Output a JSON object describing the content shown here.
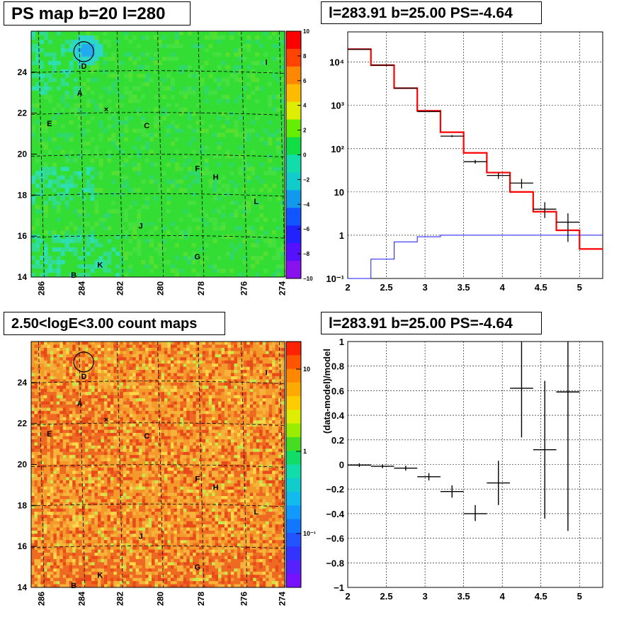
{
  "titles": {
    "ps_map": "PS map b=20 l=280",
    "spectrum": "l=283.91 b=25.00 PS=-4.64",
    "count_map": "2.50<logE<3.00 count maps",
    "residual": "l=283.91 b=25.00 PS=-4.64"
  },
  "colors": {
    "map_green": "#33dd33",
    "count_orange": "#f39a2a",
    "model_red": "#ff0000",
    "background_blue": "#1a1aff",
    "marker": "#000000"
  },
  "chart_data": [
    {
      "type": "heatmap",
      "name": "ps_map",
      "title": "PS map b=20 l=280",
      "x_ticks": [
        "286",
        "284",
        "282",
        "280",
        "278",
        "276",
        "274"
      ],
      "y_ticks": [
        "14",
        "16",
        "18",
        "20",
        "22",
        "24"
      ],
      "xlim": [
        286.5,
        274
      ],
      "ylim": [
        14,
        26
      ],
      "colorbar": {
        "range": [
          -10,
          10
        ],
        "ticks": [
          "10",
          "8",
          "6",
          "4",
          "2",
          "0",
          "−2",
          "−4",
          "−6",
          "−8",
          "−10"
        ]
      },
      "sources": [
        {
          "label": "D",
          "l": 283.9,
          "b": 24.3
        },
        {
          "label": "A",
          "l": 284.1,
          "b": 23.0
        },
        {
          "label": "E",
          "l": 285.6,
          "b": 21.5
        },
        {
          "label": "C",
          "l": 280.8,
          "b": 21.4
        },
        {
          "label": "I",
          "l": 274.9,
          "b": 24.5
        },
        {
          "label": "F",
          "l": 278.3,
          "b": 19.3
        },
        {
          "label": "H",
          "l": 277.4,
          "b": 18.9
        },
        {
          "label": "L",
          "l": 275.4,
          "b": 17.7
        },
        {
          "label": "J",
          "l": 281.1,
          "b": 16.5
        },
        {
          "label": "G",
          "l": 278.3,
          "b": 15.0
        },
        {
          "label": "K",
          "l": 283.1,
          "b": 14.6
        },
        {
          "label": "B",
          "l": 284.4,
          "b": 14.1
        }
      ],
      "circle": {
        "l": 283.91,
        "b": 25.0
      },
      "cross": {
        "l": 282.8,
        "b": 22.2
      }
    },
    {
      "type": "line",
      "name": "spectrum",
      "title": "l=283.91 b=25.00 PS=-4.64",
      "x_ticks": [
        "2",
        "2.5",
        "3",
        "3.5",
        "4",
        "4.5",
        "5"
      ],
      "y_ticks": [
        "10⁻¹",
        "1",
        "10",
        "10²",
        "10³",
        "10⁴"
      ],
      "xlim": [
        2,
        5.3
      ],
      "ylim": [
        0.1,
        50000
      ],
      "y_scale": "log",
      "grid": true,
      "series": [
        {
          "role": "model",
          "bin_edges": [
            2,
            2.3,
            2.6,
            2.9,
            3.2,
            3.5,
            3.8,
            4.1,
            4.4,
            4.7,
            5.0,
            5.3
          ],
          "values": [
            20000,
            8500,
            2500,
            750,
            240,
            80,
            28,
            10,
            3.5,
            1.3,
            0.48
          ]
        },
        {
          "role": "background",
          "bin_edges": [
            2,
            2.3,
            2.6,
            2.9,
            3.2,
            5.3
          ],
          "values": [
            0.05,
            0.28,
            0.7,
            0.92,
            1.0
          ]
        },
        {
          "role": "data",
          "x": [
            2.15,
            2.45,
            2.75,
            3.05,
            3.35,
            3.65,
            3.95,
            4.25,
            4.55,
            4.85
          ],
          "xerr": 0.15,
          "y": [
            19800,
            8500,
            2500,
            720,
            195,
            50,
            24,
            16,
            4,
            2
          ],
          "y_low": [
            19600,
            8400,
            2450,
            700,
            185,
            45,
            20,
            12,
            2.5,
            0.7
          ],
          "y_high": [
            20000,
            8600,
            2550,
            740,
            205,
            55,
            28,
            20,
            5.8,
            3.2
          ]
        }
      ]
    },
    {
      "type": "heatmap",
      "name": "count_map",
      "title": "2.50<logE<3.00 count maps",
      "x_ticks": [
        "286",
        "284",
        "282",
        "280",
        "278",
        "276",
        "274"
      ],
      "y_ticks": [
        "14",
        "16",
        "18",
        "20",
        "22",
        "24"
      ],
      "colorbar": {
        "scale": "log",
        "ticks": [
          "10",
          "1",
          "10⁻¹"
        ]
      }
    },
    {
      "type": "scatter",
      "name": "residual",
      "title": "l=283.91 b=25.00 PS=-4.64",
      "ylabel": "(data-model)/model",
      "x_ticks": [
        "2",
        "2.5",
        "3",
        "3.5",
        "4",
        "4.5",
        "5"
      ],
      "y_ticks": [
        "1",
        "0.8",
        "0.6",
        "0.4",
        "0.2",
        "0",
        "−0.2",
        "−0.4",
        "−0.6",
        "−0.8",
        "−1"
      ],
      "xlim": [
        2,
        5.3
      ],
      "ylim": [
        -1,
        1
      ],
      "grid": true,
      "x": [
        2.15,
        2.45,
        2.75,
        3.05,
        3.35,
        3.65,
        3.95,
        4.25,
        4.55,
        4.85
      ],
      "xerr": 0.15,
      "y": [
        -0.005,
        -0.015,
        -0.03,
        -0.1,
        -0.22,
        -0.4,
        -0.15,
        0.62,
        0.12,
        0.59
      ],
      "y_low": [
        -0.02,
        -0.03,
        -0.05,
        -0.13,
        -0.27,
        -0.46,
        -0.33,
        0.22,
        -0.44,
        -0.54
      ],
      "y_high": [
        0.01,
        0.0,
        -0.01,
        -0.07,
        -0.17,
        -0.33,
        0.03,
        1.0,
        0.68,
        1.0
      ]
    }
  ]
}
